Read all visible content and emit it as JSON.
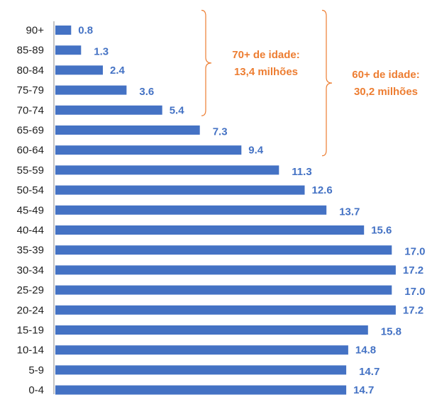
{
  "chart_data": {
    "type": "bar",
    "orientation": "horizontal",
    "categories": [
      "90+",
      "85-89",
      "80-84",
      "75-79",
      "70-74",
      "65-69",
      "60-64",
      "55-59",
      "50-54",
      "45-49",
      "40-44",
      "35-39",
      "30-34",
      "25-29",
      "20-24",
      "15-19",
      "10-14",
      "5-9",
      "0-4"
    ],
    "values": [
      0.8,
      1.3,
      2.4,
      3.6,
      5.4,
      7.3,
      9.4,
      11.3,
      12.6,
      13.7,
      15.6,
      17.0,
      17.2,
      17.0,
      17.2,
      15.8,
      14.8,
      14.7,
      14.7
    ],
    "value_labels": [
      "0.8",
      "1.3",
      "2.4",
      "3.6",
      "5.4",
      "7.3",
      "9.4",
      "11.3",
      "12.6",
      "13.7",
      "15.6",
      "17.0",
      "17.2",
      "17.0",
      "17.2",
      "15.8",
      "14.8",
      "14.7",
      "14.7"
    ],
    "xlim": [
      0,
      19.5
    ],
    "grid": false,
    "colors": {
      "bar": "#4472C4",
      "value_label": "#4472C4",
      "annotation": "#ED7D31"
    },
    "annotations": [
      {
        "lines": [
          "70+ de idade:",
          "13,4 milhões"
        ],
        "from_category": "90+",
        "to_category": "70-74"
      },
      {
        "lines": [
          "60+ de idade:",
          "30,2 milhões"
        ],
        "from_category": "90+",
        "to_category": "60-64"
      }
    ]
  }
}
